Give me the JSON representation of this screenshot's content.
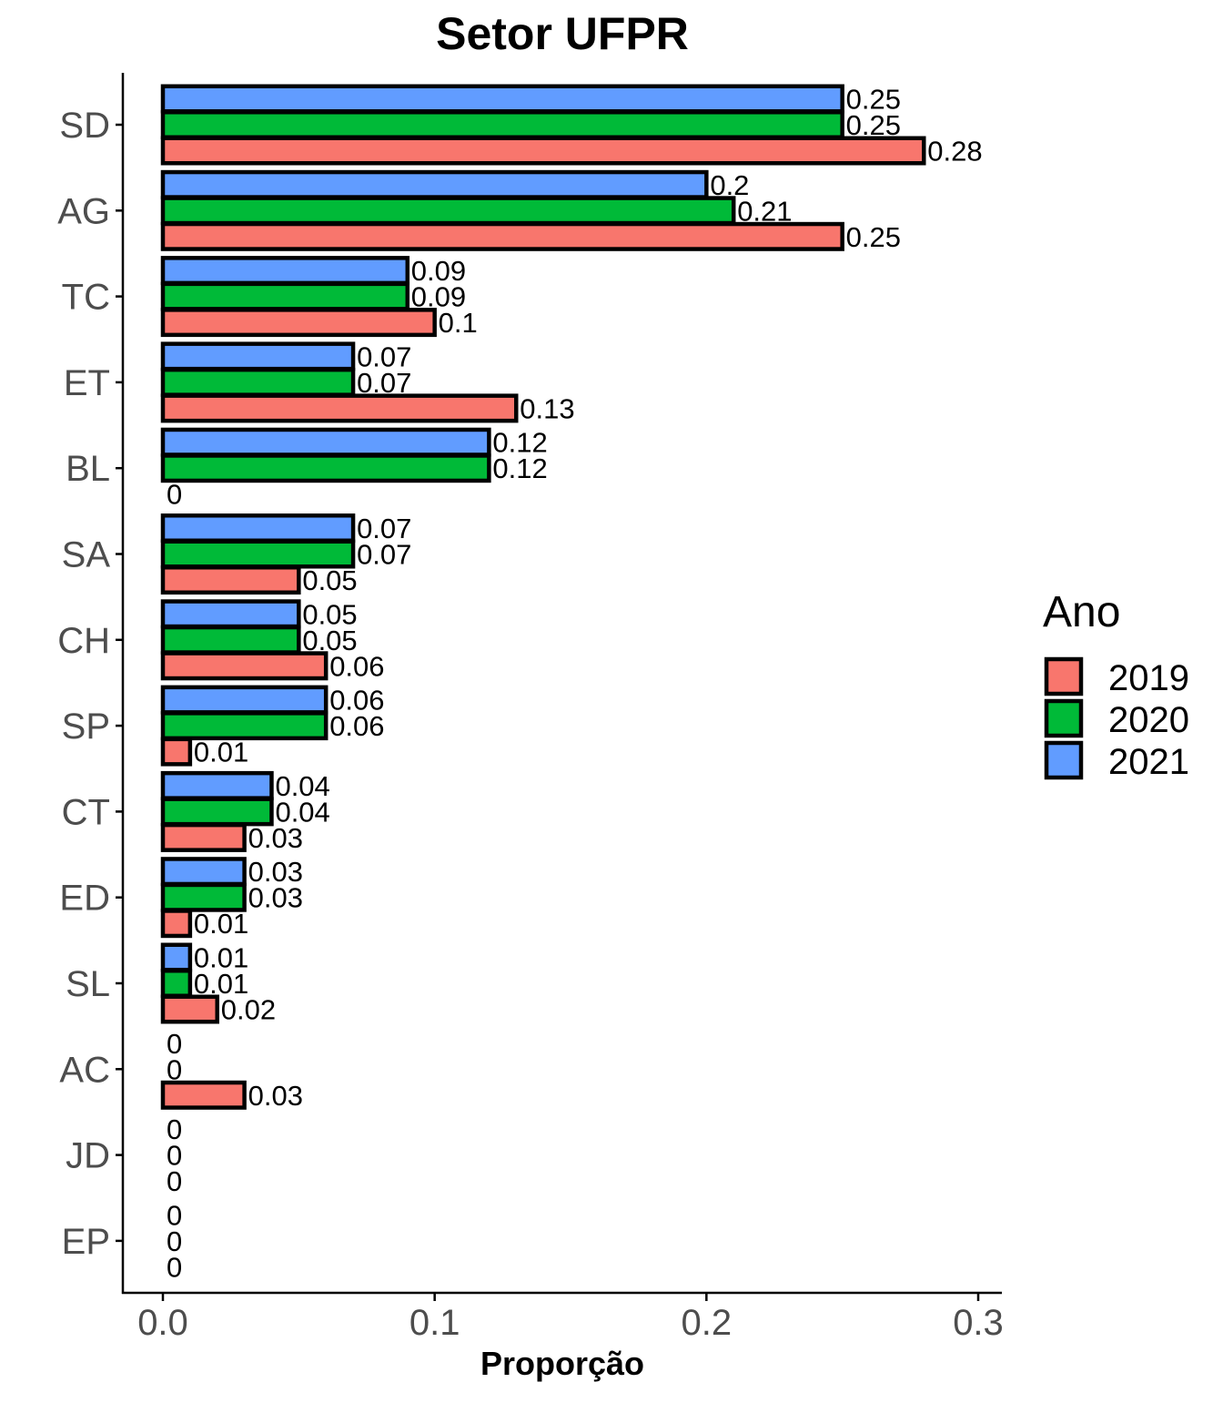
{
  "chart_data": {
    "type": "bar",
    "orientation": "horizontal",
    "title": "Setor UFPR",
    "xlabel": "Proporção",
    "ylabel": "",
    "xlim": [
      0,
      0.3
    ],
    "xticks": [
      "0.0",
      "0.1",
      "0.2",
      "0.3"
    ],
    "xtick_values": [
      0,
      0.1,
      0.2,
      0.3
    ],
    "grid": false,
    "legend_title": "Ano",
    "legend_position": "right",
    "categories": [
      "SD",
      "AG",
      "TC",
      "ET",
      "BL",
      "SA",
      "CH",
      "SP",
      "CT",
      "ED",
      "SL",
      "AC",
      "JD",
      "EP"
    ],
    "series": [
      {
        "name": "2019",
        "color": "#F8766D",
        "values": [
          0.28,
          0.25,
          0.1,
          0.13,
          0,
          0.05,
          0.06,
          0.01,
          0.03,
          0.01,
          0.02,
          0.03,
          0,
          0
        ],
        "labels": [
          "0.28",
          "0.25",
          "0.1",
          "0.13",
          "0",
          "0.05",
          "0.06",
          "0.01",
          "0.03",
          "0.01",
          "0.02",
          "0.03",
          "0",
          "0"
        ]
      },
      {
        "name": "2020",
        "color": "#00BA38",
        "values": [
          0.25,
          0.21,
          0.09,
          0.07,
          0.12,
          0.07,
          0.05,
          0.06,
          0.04,
          0.03,
          0.01,
          0,
          0,
          0
        ],
        "labels": [
          "0.25",
          "0.21",
          "0.09",
          "0.07",
          "0.12",
          "0.07",
          "0.05",
          "0.06",
          "0.04",
          "0.03",
          "0.01",
          "0",
          "0",
          "0"
        ]
      },
      {
        "name": "2021",
        "color": "#619CFF",
        "values": [
          0.25,
          0.2,
          0.09,
          0.07,
          0.12,
          0.07,
          0.05,
          0.06,
          0.04,
          0.03,
          0.01,
          0,
          0,
          0
        ],
        "labels": [
          "0.25",
          "0.2",
          "0.09",
          "0.07",
          "0.12",
          "0.07",
          "0.05",
          "0.06",
          "0.04",
          "0.03",
          "0.01",
          "0",
          "0",
          "0"
        ]
      }
    ]
  }
}
